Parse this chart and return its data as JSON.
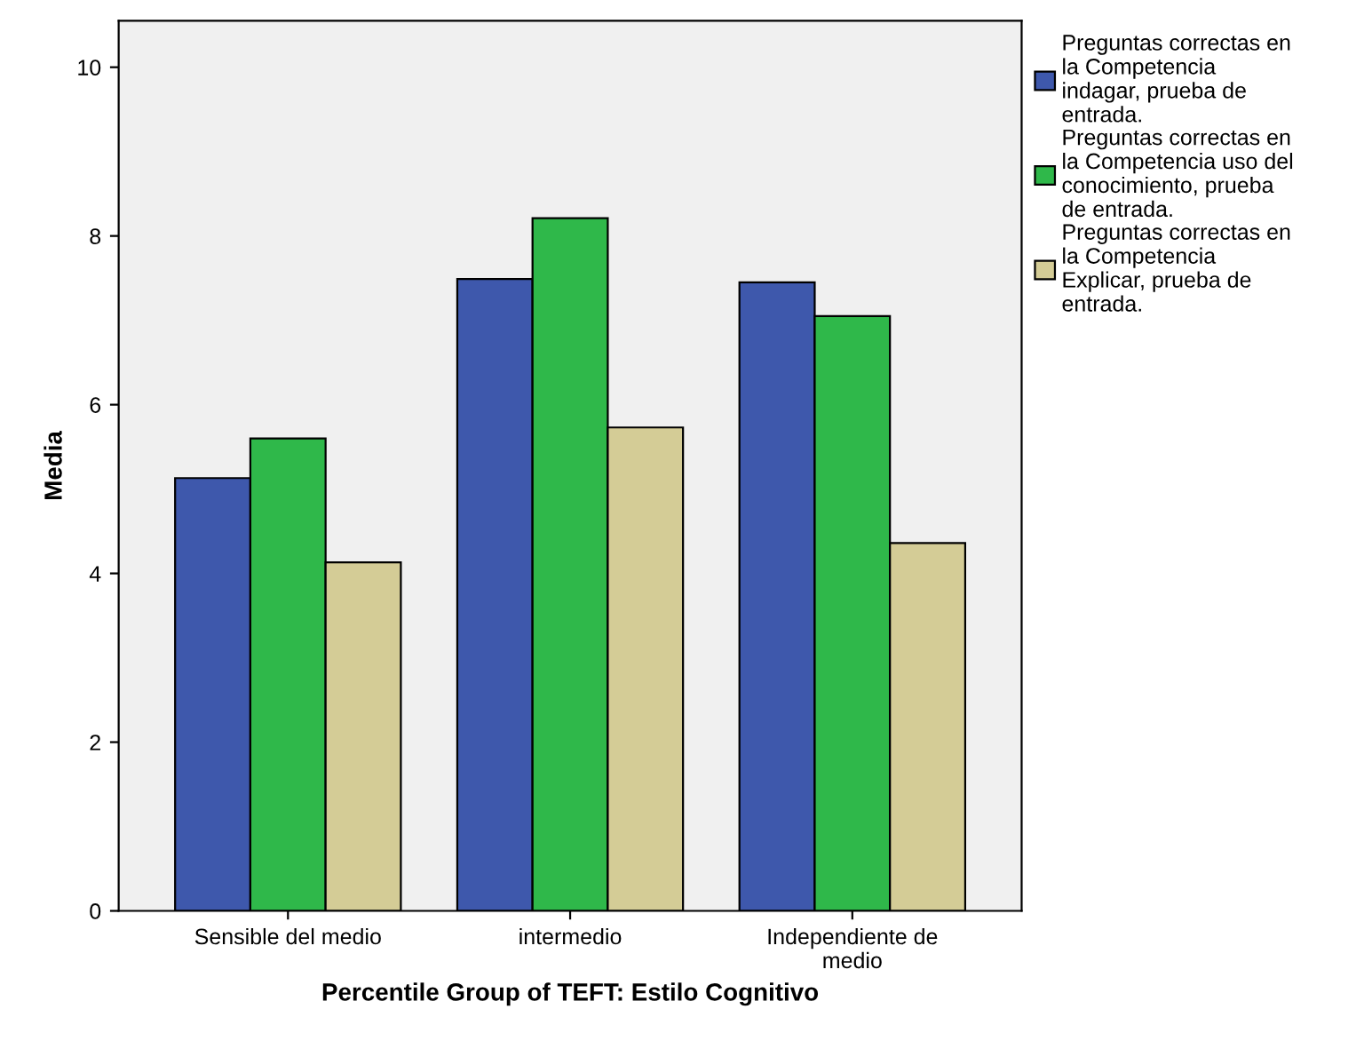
{
  "chart_data": {
    "type": "bar",
    "xlabel": "Percentile Group of TEFT: Estilo Cognitivo",
    "ylabel": "Media",
    "categories": [
      "Sensible del medio",
      "intermedio",
      "Independiente de\nmedio"
    ],
    "series": [
      {
        "name": "Preguntas correctas en\nla Competencia\nindagar, prueba de\nentrada.",
        "color": "#3e58ac",
        "values": [
          5.13,
          7.49,
          7.45
        ]
      },
      {
        "name": "Preguntas correctas en\nla Competencia uso del\nconocimiento, prueba\nde entrada.",
        "color": "#2fb84a",
        "values": [
          5.6,
          8.21,
          7.05
        ]
      },
      {
        "name": "Preguntas correctas en\nla Competencia\nExplicar, prueba de\nentrada.",
        "color": "#d4cc96",
        "values": [
          4.13,
          5.73,
          4.36
        ]
      }
    ],
    "ylim": [
      0,
      10.55
    ],
    "yticks": [
      0,
      2,
      4,
      6,
      8,
      10
    ],
    "grid": false,
    "legend": "right"
  }
}
